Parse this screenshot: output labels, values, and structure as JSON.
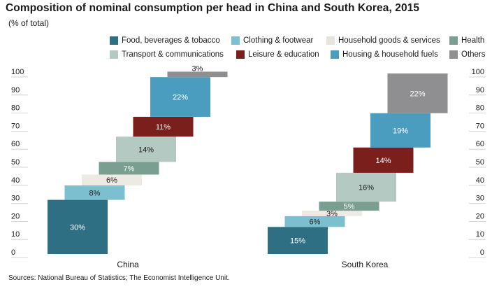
{
  "title": "Composition of  nominal consumption per head in China and South Korea, 2015",
  "subtitle": "(% of total)",
  "source": "Sources: National Bureau of Statistics; The Economist Intelligence Unit.",
  "chart_data": {
    "type": "bar",
    "subtype": "stacked waterfall",
    "title": "Composition of  nominal consumption per head in China and South Korea, 2015",
    "subtitle": "(% of total)",
    "ylim": [
      0,
      100
    ],
    "yticks": [
      0,
      10,
      20,
      30,
      40,
      50,
      60,
      70,
      80,
      90,
      100
    ],
    "categories": [
      "China",
      "South Korea"
    ],
    "legend_position": "top",
    "grid": false,
    "series": [
      {
        "name": "Food, beverages & tobacco",
        "color": "#2f6f84",
        "values": [
          30,
          15
        ]
      },
      {
        "name": "Clothing & footwear",
        "color": "#7cc0cf",
        "values": [
          8,
          6
        ]
      },
      {
        "name": "Household goods & services",
        "color": "#eceae2",
        "values": [
          6,
          3
        ]
      },
      {
        "name": "Health",
        "color": "#7a9e90",
        "values": [
          7,
          5
        ]
      },
      {
        "name": "Transport & communications",
        "color": "#b3c9c1",
        "values": [
          14,
          16
        ]
      },
      {
        "name": "Leisure & education",
        "color": "#7b1f1d",
        "values": [
          11,
          14
        ]
      },
      {
        "name": "Housing & household fuels",
        "color": "#4b9dc0",
        "values": [
          22,
          19
        ]
      },
      {
        "name": "Others",
        "color": "#8f8f91",
        "values": [
          3,
          22
        ]
      }
    ],
    "labels": [
      [
        "30%",
        "8%",
        "6%",
        "7%",
        "14%",
        "11%",
        "22%",
        "3%"
      ],
      [
        "15%",
        "6%",
        "3%",
        "5%",
        "16%",
        "14%",
        "19%",
        "22%"
      ]
    ]
  }
}
